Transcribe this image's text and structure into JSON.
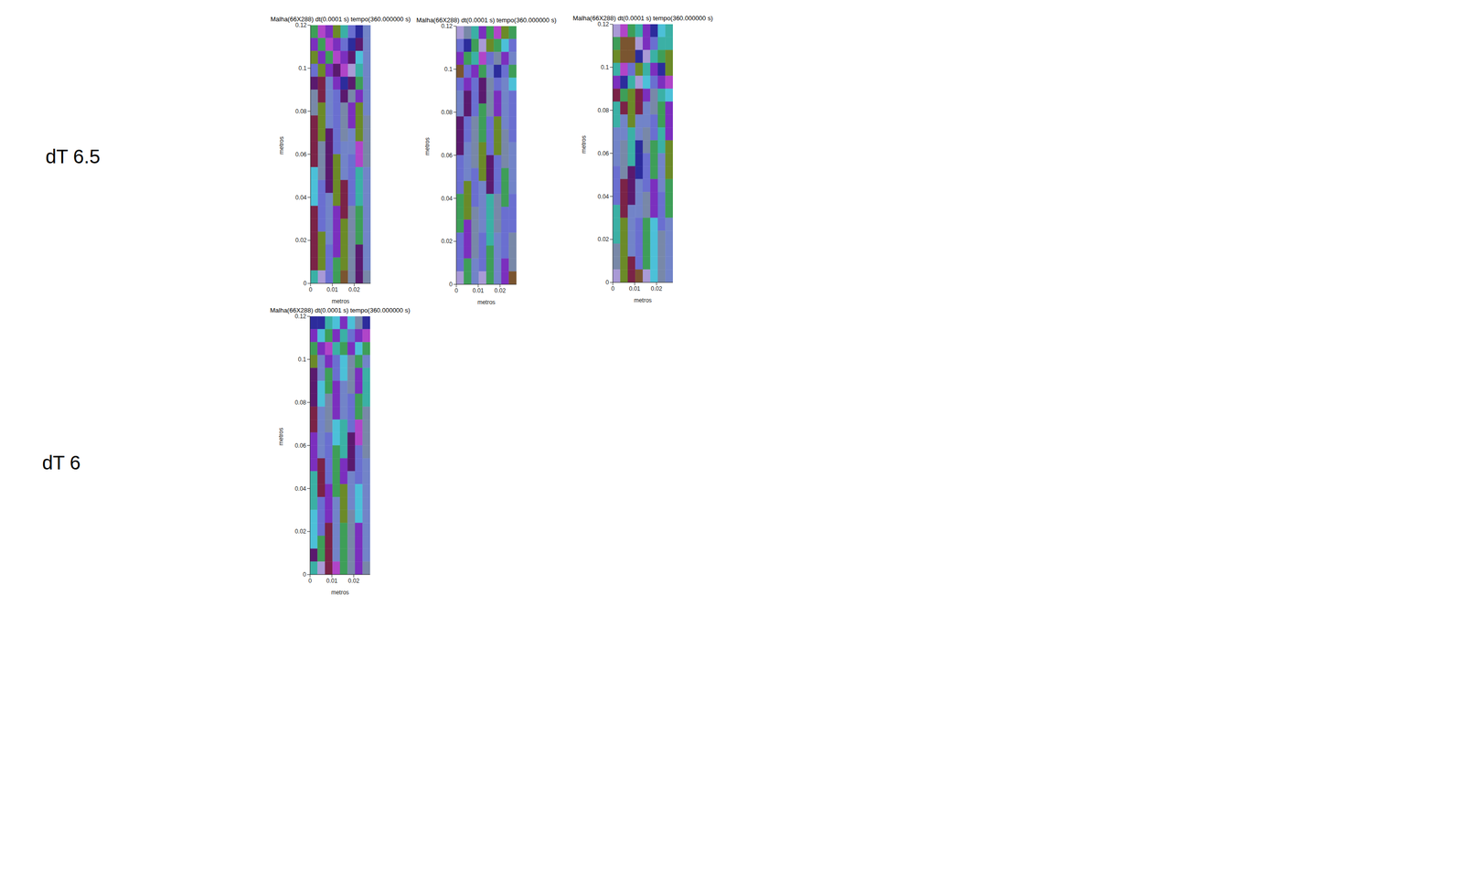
{
  "row_labels": [
    "dT 6.5",
    "dT 6"
  ],
  "chart_data": [
    {
      "type": "heatmap",
      "title": "Malha(66X288) dt(0.0001 s) tempo(360.000000 s)",
      "xlabel": "metros",
      "ylabel": "metros",
      "xlim": [
        0,
        0.0275
      ],
      "ylim": [
        0,
        0.12
      ],
      "xticks": [
        0,
        0.01,
        0.02
      ],
      "yticks": [
        0,
        0.02,
        0.04,
        0.06,
        0.08,
        0.1,
        0.12
      ],
      "colors": [
        "#7b2fbe",
        "#5a1a6e",
        "#6a6fd0",
        "#6b8a28",
        "#7284c8",
        "#3e9e58",
        "#3bb0a5",
        "#7a2347",
        "#7888a8",
        "#a99ad6",
        "#7a5530",
        "#b045c8",
        "#2c2c9c",
        "#4cc0d8"
      ],
      "cells": [
        [
          5,
          11,
          0,
          3,
          6,
          2,
          12,
          4
        ],
        [
          0,
          5,
          11,
          0,
          2,
          12,
          1,
          4
        ],
        [
          3,
          0,
          5,
          11,
          0,
          1,
          13,
          4
        ],
        [
          2,
          3,
          0,
          1,
          11,
          9,
          6,
          4
        ],
        [
          1,
          7,
          4,
          0,
          12,
          1,
          5,
          4
        ],
        [
          8,
          7,
          4,
          2,
          1,
          8,
          0,
          4
        ],
        [
          8,
          3,
          4,
          2,
          8,
          0,
          3,
          4
        ],
        [
          7,
          3,
          4,
          2,
          8,
          0,
          3,
          8
        ],
        [
          7,
          3,
          1,
          2,
          8,
          4,
          3,
          8
        ],
        [
          7,
          8,
          1,
          2,
          4,
          4,
          11,
          8
        ],
        [
          7,
          8,
          1,
          3,
          4,
          2,
          11,
          8
        ],
        [
          13,
          8,
          1,
          3,
          4,
          2,
          6,
          4
        ],
        [
          13,
          2,
          1,
          3,
          7,
          2,
          6,
          4
        ],
        [
          13,
          2,
          4,
          3,
          7,
          2,
          6,
          4
        ],
        [
          7,
          2,
          4,
          0,
          7,
          8,
          5,
          4
        ],
        [
          7,
          2,
          4,
          0,
          3,
          8,
          5,
          4
        ],
        [
          7,
          3,
          4,
          0,
          3,
          8,
          5,
          4
        ],
        [
          7,
          3,
          2,
          0,
          3,
          8,
          1,
          4
        ],
        [
          7,
          3,
          2,
          5,
          3,
          8,
          1,
          4
        ],
        [
          6,
          9,
          2,
          5,
          10,
          8,
          1,
          8
        ]
      ]
    },
    {
      "type": "heatmap",
      "title": "Malha(66X288) dt(0.0001 s) tempo(360.000000 s)",
      "xlabel": "metros",
      "ylabel": "metros",
      "xlim": [
        0,
        0.0275
      ],
      "ylim": [
        0,
        0.12
      ],
      "xticks": [
        0,
        0.01,
        0.02
      ],
      "yticks": [
        0,
        0.02,
        0.04,
        0.06,
        0.08,
        0.1,
        0.12
      ],
      "colors": [
        "#7b2fbe",
        "#5a1a6e",
        "#6a6fd0",
        "#6b8a28",
        "#7284c8",
        "#3e9e58",
        "#3bb0a5",
        "#7a2347",
        "#7888a8",
        "#a99ad6",
        "#7a5530",
        "#b045c8",
        "#2c2c9c",
        "#4cc0d8"
      ],
      "cells": [
        [
          9,
          8,
          6,
          0,
          5,
          11,
          3,
          5
        ],
        [
          2,
          12,
          5,
          9,
          3,
          5,
          13,
          2
        ],
        [
          0,
          5,
          6,
          11,
          2,
          8,
          0,
          4
        ],
        [
          10,
          2,
          0,
          5,
          4,
          12,
          2,
          5
        ],
        [
          2,
          0,
          2,
          1,
          8,
          2,
          4,
          13
        ],
        [
          4,
          1,
          2,
          1,
          8,
          0,
          4,
          2
        ],
        [
          4,
          1,
          2,
          5,
          8,
          0,
          4,
          2
        ],
        [
          1,
          2,
          8,
          5,
          2,
          3,
          4,
          2
        ],
        [
          1,
          2,
          8,
          5,
          2,
          3,
          8,
          2
        ],
        [
          1,
          4,
          8,
          3,
          2,
          3,
          8,
          4
        ],
        [
          2,
          4,
          8,
          3,
          1,
          2,
          8,
          4
        ],
        [
          2,
          4,
          2,
          3,
          1,
          2,
          5,
          4
        ],
        [
          2,
          3,
          2,
          4,
          1,
          2,
          5,
          4
        ],
        [
          5,
          3,
          2,
          4,
          6,
          8,
          5,
          2
        ],
        [
          5,
          3,
          8,
          4,
          6,
          8,
          2,
          2
        ],
        [
          5,
          0,
          8,
          4,
          6,
          8,
          2,
          2
        ],
        [
          2,
          0,
          8,
          2,
          6,
          4,
          2,
          8
        ],
        [
          2,
          0,
          8,
          2,
          5,
          4,
          2,
          8
        ],
        [
          2,
          5,
          4,
          2,
          5,
          4,
          0,
          8
        ],
        [
          9,
          5,
          4,
          9,
          5,
          4,
          0,
          10
        ]
      ]
    },
    {
      "type": "heatmap",
      "title": "Malha(66X288) dt(0.0001 s) tempo(360.000000 s)",
      "xlabel": "metros",
      "ylabel": "metros",
      "xlim": [
        0,
        0.0275
      ],
      "ylim": [
        0,
        0.12
      ],
      "xticks": [
        0,
        0.01,
        0.02
      ],
      "yticks": [
        0,
        0.02,
        0.04,
        0.06,
        0.08,
        0.1,
        0.12
      ],
      "colors": [
        "#7b2fbe",
        "#5a1a6e",
        "#6a6fd0",
        "#6b8a28",
        "#7284c8",
        "#3e9e58",
        "#3bb0a5",
        "#7a2347",
        "#7888a8",
        "#a99ad6",
        "#7a5530",
        "#b045c8",
        "#2c2c9c",
        "#4cc0d8"
      ],
      "cells": [
        [
          9,
          11,
          5,
          6,
          0,
          12,
          13,
          6
        ],
        [
          5,
          10,
          10,
          9,
          0,
          2,
          6,
          6
        ],
        [
          3,
          10,
          10,
          12,
          9,
          6,
          5,
          3
        ],
        [
          6,
          11,
          2,
          3,
          6,
          0,
          12,
          3
        ],
        [
          0,
          12,
          6,
          9,
          13,
          2,
          0,
          11
        ],
        [
          7,
          5,
          3,
          7,
          0,
          8,
          6,
          13
        ],
        [
          6,
          7,
          3,
          7,
          4,
          8,
          5,
          0
        ],
        [
          6,
          4,
          3,
          4,
          4,
          2,
          5,
          0
        ],
        [
          4,
          4,
          6,
          4,
          8,
          2,
          6,
          0
        ],
        [
          4,
          8,
          6,
          12,
          8,
          5,
          6,
          3
        ],
        [
          4,
          8,
          6,
          12,
          2,
          5,
          4,
          3
        ],
        [
          2,
          8,
          1,
          12,
          2,
          5,
          4,
          3
        ],
        [
          2,
          7,
          1,
          4,
          2,
          0,
          4,
          5
        ],
        [
          2,
          7,
          1,
          4,
          8,
          0,
          2,
          5
        ],
        [
          6,
          7,
          4,
          4,
          8,
          0,
          2,
          5
        ],
        [
          6,
          3,
          4,
          2,
          5,
          13,
          2,
          4
        ],
        [
          6,
          3,
          4,
          2,
          5,
          13,
          8,
          4
        ],
        [
          8,
          3,
          4,
          2,
          5,
          13,
          8,
          4
        ],
        [
          8,
          3,
          7,
          2,
          5,
          13,
          8,
          4
        ],
        [
          9,
          3,
          7,
          10,
          9,
          13,
          8,
          4
        ]
      ]
    },
    {
      "type": "heatmap",
      "title": "Malha(66X288) dt(0.0001 s) tempo(360.000000 s)",
      "xlabel": "metros",
      "ylabel": "metros",
      "xlim": [
        0,
        0.0275
      ],
      "ylim": [
        0,
        0.12
      ],
      "xticks": [
        0,
        0.01,
        0.02
      ],
      "yticks": [
        0,
        0.02,
        0.04,
        0.06,
        0.08,
        0.1,
        0.12
      ],
      "colors": [
        "#7b2fbe",
        "#5a1a6e",
        "#6a6fd0",
        "#6b8a28",
        "#7284c8",
        "#3e9e58",
        "#3bb0a5",
        "#7a2347",
        "#7888a8",
        "#a99ad6",
        "#7a5530",
        "#b045c8",
        "#2c2c9c",
        "#4cc0d8"
      ],
      "cells": [
        [
          12,
          12,
          6,
          13,
          0,
          13,
          8,
          12
        ],
        [
          0,
          13,
          5,
          0,
          6,
          2,
          0,
          11
        ],
        [
          5,
          0,
          11,
          6,
          5,
          0,
          13,
          5
        ],
        [
          3,
          4,
          0,
          2,
          13,
          8,
          5,
          4
        ],
        [
          1,
          4,
          5,
          2,
          13,
          8,
          0,
          6
        ],
        [
          1,
          13,
          5,
          0,
          4,
          8,
          0,
          6
        ],
        [
          1,
          13,
          8,
          0,
          4,
          2,
          5,
          6
        ],
        [
          7,
          4,
          8,
          0,
          4,
          2,
          5,
          8
        ],
        [
          7,
          4,
          8,
          13,
          6,
          2,
          11,
          8
        ],
        [
          0,
          4,
          2,
          13,
          6,
          1,
          11,
          8
        ],
        [
          0,
          4,
          2,
          5,
          6,
          1,
          2,
          8
        ],
        [
          0,
          7,
          2,
          5,
          0,
          1,
          2,
          4
        ],
        [
          6,
          7,
          2,
          5,
          0,
          4,
          2,
          4
        ],
        [
          6,
          7,
          0,
          5,
          3,
          4,
          13,
          4
        ],
        [
          6,
          2,
          0,
          4,
          3,
          4,
          13,
          4
        ],
        [
          13,
          2,
          0,
          4,
          3,
          8,
          13,
          4
        ],
        [
          13,
          2,
          7,
          4,
          5,
          8,
          0,
          4
        ],
        [
          13,
          5,
          7,
          4,
          5,
          8,
          0,
          4
        ],
        [
          1,
          5,
          7,
          4,
          5,
          8,
          0,
          4
        ],
        [
          6,
          9,
          7,
          11,
          5,
          8,
          0,
          8
        ]
      ]
    }
  ]
}
